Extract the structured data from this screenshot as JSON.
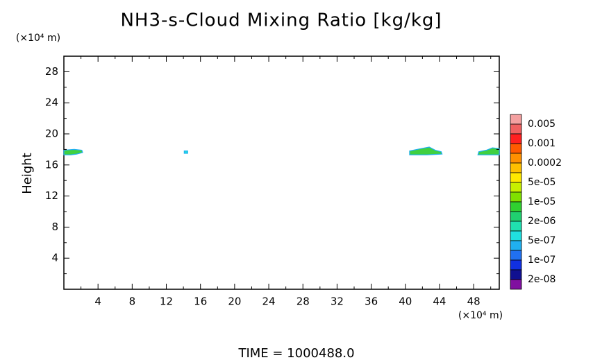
{
  "chart_data": {
    "type": "contour",
    "title": "NH3-s-Cloud Mixing Ratio [kg/kg]",
    "y_label": "Height",
    "y_unit": "(×10⁴ m)",
    "x_unit": "(×10⁴ m)",
    "footer": "TIME = 1000488.0",
    "xlim": [
      0,
      51
    ],
    "ylim": [
      0,
      30
    ],
    "xticks": [
      4,
      8,
      12,
      16,
      20,
      24,
      28,
      32,
      36,
      40,
      44,
      48
    ],
    "yticks": [
      4,
      8,
      12,
      16,
      20,
      24,
      28
    ],
    "xminorticks": [
      2,
      6,
      10,
      14,
      18,
      22,
      26,
      30,
      34,
      38,
      42,
      46,
      50
    ],
    "yminorticks": [
      2,
      6,
      10,
      14,
      18,
      22,
      26,
      30
    ],
    "colorbar": {
      "colors": [
        "#f4a0a0",
        "#f06060",
        "#ff2020",
        "#ff5a00",
        "#ff9000",
        "#ffc000",
        "#ffe800",
        "#c8f000",
        "#80e000",
        "#30d030",
        "#20d070",
        "#20e0b0",
        "#20e0e0",
        "#20b0f0",
        "#2070f0",
        "#1030e0",
        "#101090",
        "#8010a0"
      ],
      "labels": [
        "0.005",
        "0.001",
        "0.0002",
        "5e-05",
        "1e-05",
        "2e-06",
        "5e-07",
        "1e-07",
        "2e-08"
      ]
    },
    "patches": [
      {
        "color": "#40d040",
        "x": [
          0,
          0.8,
          1.5,
          2.2,
          2.1,
          1.2,
          0
        ],
        "y": [
          17.3,
          17.3,
          17.4,
          17.6,
          17.9,
          18.0,
          17.9
        ]
      },
      {
        "color": "#20e0e0",
        "x": [
          14.1,
          14.5,
          14.5,
          14.1
        ],
        "y": [
          17.5,
          17.5,
          17.8,
          17.8
        ]
      },
      {
        "color": "#40d040",
        "x": [
          40.5,
          42.5,
          44.3,
          44.2,
          43.5,
          42.8,
          41.8,
          40.5
        ],
        "y": [
          17.3,
          17.3,
          17.4,
          17.7,
          17.9,
          18.3,
          18.1,
          17.8
        ]
      },
      {
        "color": "#40d040",
        "x": [
          48.5,
          50,
          51,
          51,
          50.2,
          49.5,
          48.6
        ],
        "y": [
          17.3,
          17.3,
          17.3,
          18.1,
          18.2,
          17.9,
          17.7
        ]
      }
    ]
  }
}
